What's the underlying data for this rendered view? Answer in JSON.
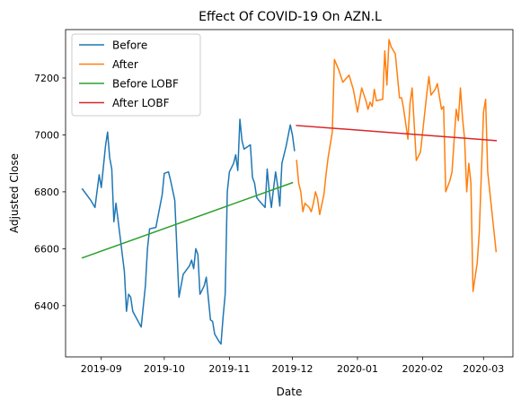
{
  "chart_data": {
    "type": "line",
    "title": "Effect Of COVID-19 On AZN.L",
    "xlabel": "Date",
    "ylabel": "Adjusted Close",
    "xlim": [
      "2019-08-15",
      "2020-03-15"
    ],
    "ylim": [
      6220,
      7370
    ],
    "grid": false,
    "legend_position": "top-left",
    "x_ticks": [
      "2019-09",
      "2019-10",
      "2019-11",
      "2019-12",
      "2020-01",
      "2020-02",
      "2020-03"
    ],
    "y_ticks": [
      6400,
      6600,
      6800,
      7000,
      7200
    ],
    "series": [
      {
        "name": "Before",
        "color": "#1f77b4",
        "points": [
          [
            "2019-08-23",
            6810
          ],
          [
            "2019-08-27",
            6770
          ],
          [
            "2019-08-29",
            6745
          ],
          [
            "2019-08-31",
            6860
          ],
          [
            "2019-09-01",
            6815
          ],
          [
            "2019-09-03",
            6960
          ],
          [
            "2019-09-04",
            7010
          ],
          [
            "2019-09-05",
            6920
          ],
          [
            "2019-09-06",
            6880
          ],
          [
            "2019-09-07",
            6695
          ],
          [
            "2019-09-08",
            6760
          ],
          [
            "2019-09-10",
            6640
          ],
          [
            "2019-09-12",
            6520
          ],
          [
            "2019-09-13",
            6380
          ],
          [
            "2019-09-14",
            6440
          ],
          [
            "2019-09-15",
            6430
          ],
          [
            "2019-09-16",
            6380
          ],
          [
            "2019-09-20",
            6325
          ],
          [
            "2019-09-22",
            6470
          ],
          [
            "2019-09-23",
            6600
          ],
          [
            "2019-09-24",
            6670
          ],
          [
            "2019-09-27",
            6675
          ],
          [
            "2019-09-30",
            6790
          ],
          [
            "2019-10-01",
            6865
          ],
          [
            "2019-10-03",
            6870
          ],
          [
            "2019-10-04",
            6840
          ],
          [
            "2019-10-06",
            6770
          ],
          [
            "2019-10-08",
            6430
          ],
          [
            "2019-10-10",
            6510
          ],
          [
            "2019-10-13",
            6540
          ],
          [
            "2019-10-14",
            6560
          ],
          [
            "2019-10-15",
            6530
          ],
          [
            "2019-10-16",
            6600
          ],
          [
            "2019-10-17",
            6580
          ],
          [
            "2019-10-18",
            6440
          ],
          [
            "2019-10-20",
            6470
          ],
          [
            "2019-10-21",
            6500
          ],
          [
            "2019-10-23",
            6350
          ],
          [
            "2019-10-24",
            6345
          ],
          [
            "2019-10-25",
            6300
          ],
          [
            "2019-10-27",
            6275
          ],
          [
            "2019-10-28",
            6265
          ],
          [
            "2019-10-29",
            6360
          ],
          [
            "2019-10-30",
            6440
          ],
          [
            "2019-10-31",
            6800
          ],
          [
            "2019-11-01",
            6870
          ],
          [
            "2019-11-03",
            6900
          ],
          [
            "2019-11-04",
            6930
          ],
          [
            "2019-11-05",
            6875
          ],
          [
            "2019-11-06",
            7055
          ],
          [
            "2019-11-07",
            6980
          ],
          [
            "2019-11-08",
            6950
          ],
          [
            "2019-11-11",
            6965
          ],
          [
            "2019-11-12",
            6850
          ],
          [
            "2019-11-13",
            6830
          ],
          [
            "2019-11-14",
            6780
          ],
          [
            "2019-11-15",
            6770
          ],
          [
            "2019-11-18",
            6745
          ],
          [
            "2019-11-19",
            6880
          ],
          [
            "2019-11-20",
            6800
          ],
          [
            "2019-11-21",
            6745
          ],
          [
            "2019-11-22",
            6810
          ],
          [
            "2019-11-23",
            6870
          ],
          [
            "2019-11-24",
            6820
          ],
          [
            "2019-11-25",
            6750
          ],
          [
            "2019-11-26",
            6900
          ],
          [
            "2019-11-28",
            6960
          ],
          [
            "2019-11-30",
            7035
          ],
          [
            "2019-12-01",
            7000
          ],
          [
            "2019-12-02",
            6945
          ]
        ]
      },
      {
        "name": "After",
        "color": "#ff7f0e",
        "points": [
          [
            "2019-12-03",
            6910
          ],
          [
            "2019-12-04",
            6830
          ],
          [
            "2019-12-05",
            6800
          ],
          [
            "2019-12-06",
            6730
          ],
          [
            "2019-12-07",
            6760
          ],
          [
            "2019-12-09",
            6745
          ],
          [
            "2019-12-10",
            6730
          ],
          [
            "2019-12-11",
            6760
          ],
          [
            "2019-12-12",
            6800
          ],
          [
            "2019-12-13",
            6775
          ],
          [
            "2019-12-14",
            6720
          ],
          [
            "2019-12-16",
            6790
          ],
          [
            "2019-12-17",
            6860
          ],
          [
            "2019-12-18",
            6920
          ],
          [
            "2019-12-20",
            7010
          ],
          [
            "2019-12-21",
            7265
          ],
          [
            "2019-12-23",
            7230
          ],
          [
            "2019-12-25",
            7185
          ],
          [
            "2019-12-28",
            7210
          ],
          [
            "2019-12-30",
            7160
          ],
          [
            "2020-01-01",
            7080
          ],
          [
            "2020-01-03",
            7165
          ],
          [
            "2020-01-05",
            7120
          ],
          [
            "2020-01-06",
            7090
          ],
          [
            "2020-01-07",
            7115
          ],
          [
            "2020-01-08",
            7100
          ],
          [
            "2020-01-09",
            7160
          ],
          [
            "2020-01-10",
            7120
          ],
          [
            "2020-01-13",
            7125
          ],
          [
            "2020-01-14",
            7295
          ],
          [
            "2020-01-15",
            7175
          ],
          [
            "2020-01-16",
            7335
          ],
          [
            "2020-01-17",
            7310
          ],
          [
            "2020-01-19",
            7285
          ],
          [
            "2020-01-21",
            7130
          ],
          [
            "2020-01-22",
            7130
          ],
          [
            "2020-01-23",
            7090
          ],
          [
            "2020-01-25",
            6985
          ],
          [
            "2020-01-26",
            7110
          ],
          [
            "2020-01-27",
            7165
          ],
          [
            "2020-01-29",
            6910
          ],
          [
            "2020-01-31",
            6940
          ],
          [
            "2020-02-03",
            7145
          ],
          [
            "2020-02-04",
            7205
          ],
          [
            "2020-02-05",
            7140
          ],
          [
            "2020-02-07",
            7160
          ],
          [
            "2020-02-08",
            7180
          ],
          [
            "2020-02-10",
            7090
          ],
          [
            "2020-02-11",
            7100
          ],
          [
            "2020-02-12",
            6800
          ],
          [
            "2020-02-14",
            6840
          ],
          [
            "2020-02-15",
            6870
          ],
          [
            "2020-02-17",
            7090
          ],
          [
            "2020-02-18",
            7050
          ],
          [
            "2020-02-19",
            7165
          ],
          [
            "2020-02-20",
            7060
          ],
          [
            "2020-02-21",
            6985
          ],
          [
            "2020-02-22",
            6800
          ],
          [
            "2020-02-23",
            6900
          ],
          [
            "2020-02-24",
            6830
          ],
          [
            "2020-02-25",
            6450
          ],
          [
            "2020-02-27",
            6550
          ],
          [
            "2020-02-28",
            6660
          ],
          [
            "2020-03-01",
            7080
          ],
          [
            "2020-03-02",
            7125
          ],
          [
            "2020-03-03",
            6870
          ],
          [
            "2020-03-06",
            6660
          ],
          [
            "2020-03-07",
            6590
          ]
        ]
      },
      {
        "name": "Before LOBF",
        "color": "#2ca02c",
        "points": [
          [
            "2019-08-23",
            6568
          ],
          [
            "2019-12-01",
            6832
          ]
        ]
      },
      {
        "name": "After LOBF",
        "color": "#d62728",
        "points": [
          [
            "2019-12-03",
            7033
          ],
          [
            "2020-03-07",
            6980
          ]
        ]
      }
    ]
  }
}
